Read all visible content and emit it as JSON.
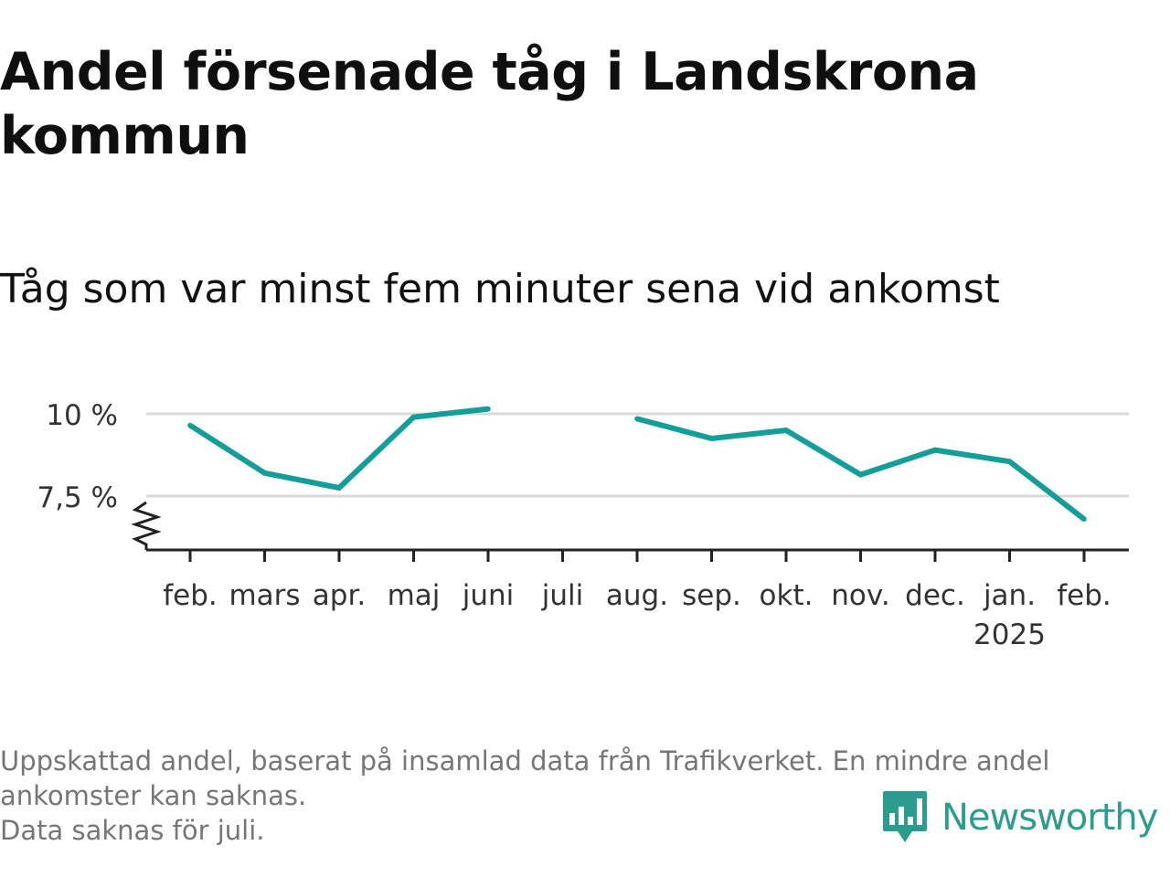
{
  "title": "Andel försenade tåg i Landskrona kommun",
  "subtitle": "Tåg som var minst fem minuter sena vid ankomst",
  "colors": {
    "line": "#139e99",
    "grid": "#d9d9d9",
    "axis": "#222222",
    "footnote": "#767676",
    "brand": "#2a9d8f"
  },
  "chart_data": {
    "type": "line",
    "categories": [
      "feb.",
      "mars",
      "apr.",
      "maj",
      "juni",
      "juli",
      "aug.",
      "sep.",
      "okt.",
      "nov.",
      "dec.",
      "jan.",
      "feb."
    ],
    "year_label": "2025",
    "year_label_under": 11,
    "series": [
      {
        "values": [
          9.65,
          8.2,
          7.75,
          9.9,
          10.15,
          null,
          9.85,
          9.25,
          9.5,
          8.15,
          8.9,
          8.55,
          6.8
        ]
      }
    ],
    "y_ticks": [
      7.5,
      10
    ],
    "y_tick_labels": [
      "7,5 %",
      "10 %"
    ],
    "ylim": [
      5.9,
      10.6
    ],
    "axis_break": true,
    "grid": true,
    "legend": "none"
  },
  "footnote": {
    "line1": "Uppskattad andel, baserat på insamlad data från Trafikverket. En mindre andel",
    "line2": "ankomster kan saknas.",
    "line3": "Data saknas för juli."
  },
  "brand": {
    "name": "Newsworthy",
    "icon": "newsworthy-logo-icon"
  }
}
